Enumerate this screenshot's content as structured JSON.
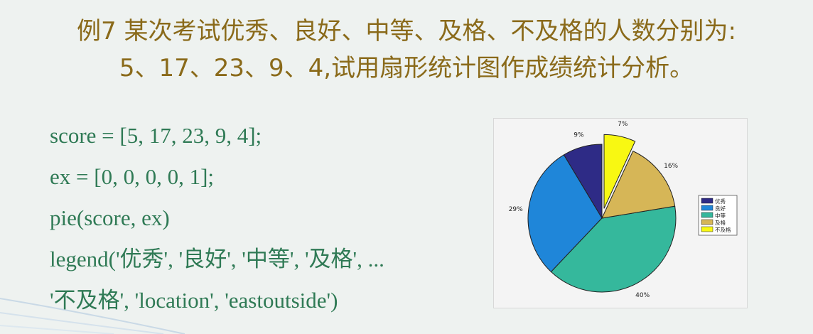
{
  "slide": {
    "title_line1": "例7  某次考试优秀、良好、中等、及格、不及格的人数分别为:",
    "title_line2": "5、17、23、9、4,试用扇形统计图作成绩统计分析。",
    "code_lines": [
      "score = [5, 17, 23, 9, 4];",
      "ex = [0, 0, 0, 0, 1];",
      "pie(score, ex)",
      "legend('优秀', '良好', '中等', '及格', ...",
      "'不及格', 'location', 'eastoutside')"
    ]
  },
  "chart_data": {
    "type": "pie",
    "categories": [
      "优秀",
      "良好",
      "中等",
      "及格",
      "不及格"
    ],
    "values": [
      5,
      17,
      23,
      9,
      4
    ],
    "explode": [
      0,
      0,
      0,
      0,
      1
    ],
    "labels": [
      "9%",
      "29%",
      "40%",
      "16%",
      "7%"
    ],
    "colors": [
      "#2e2b86",
      "#1f86d9",
      "#35b89c",
      "#d6b657",
      "#f8f812"
    ],
    "legend_position": "eastoutside"
  }
}
